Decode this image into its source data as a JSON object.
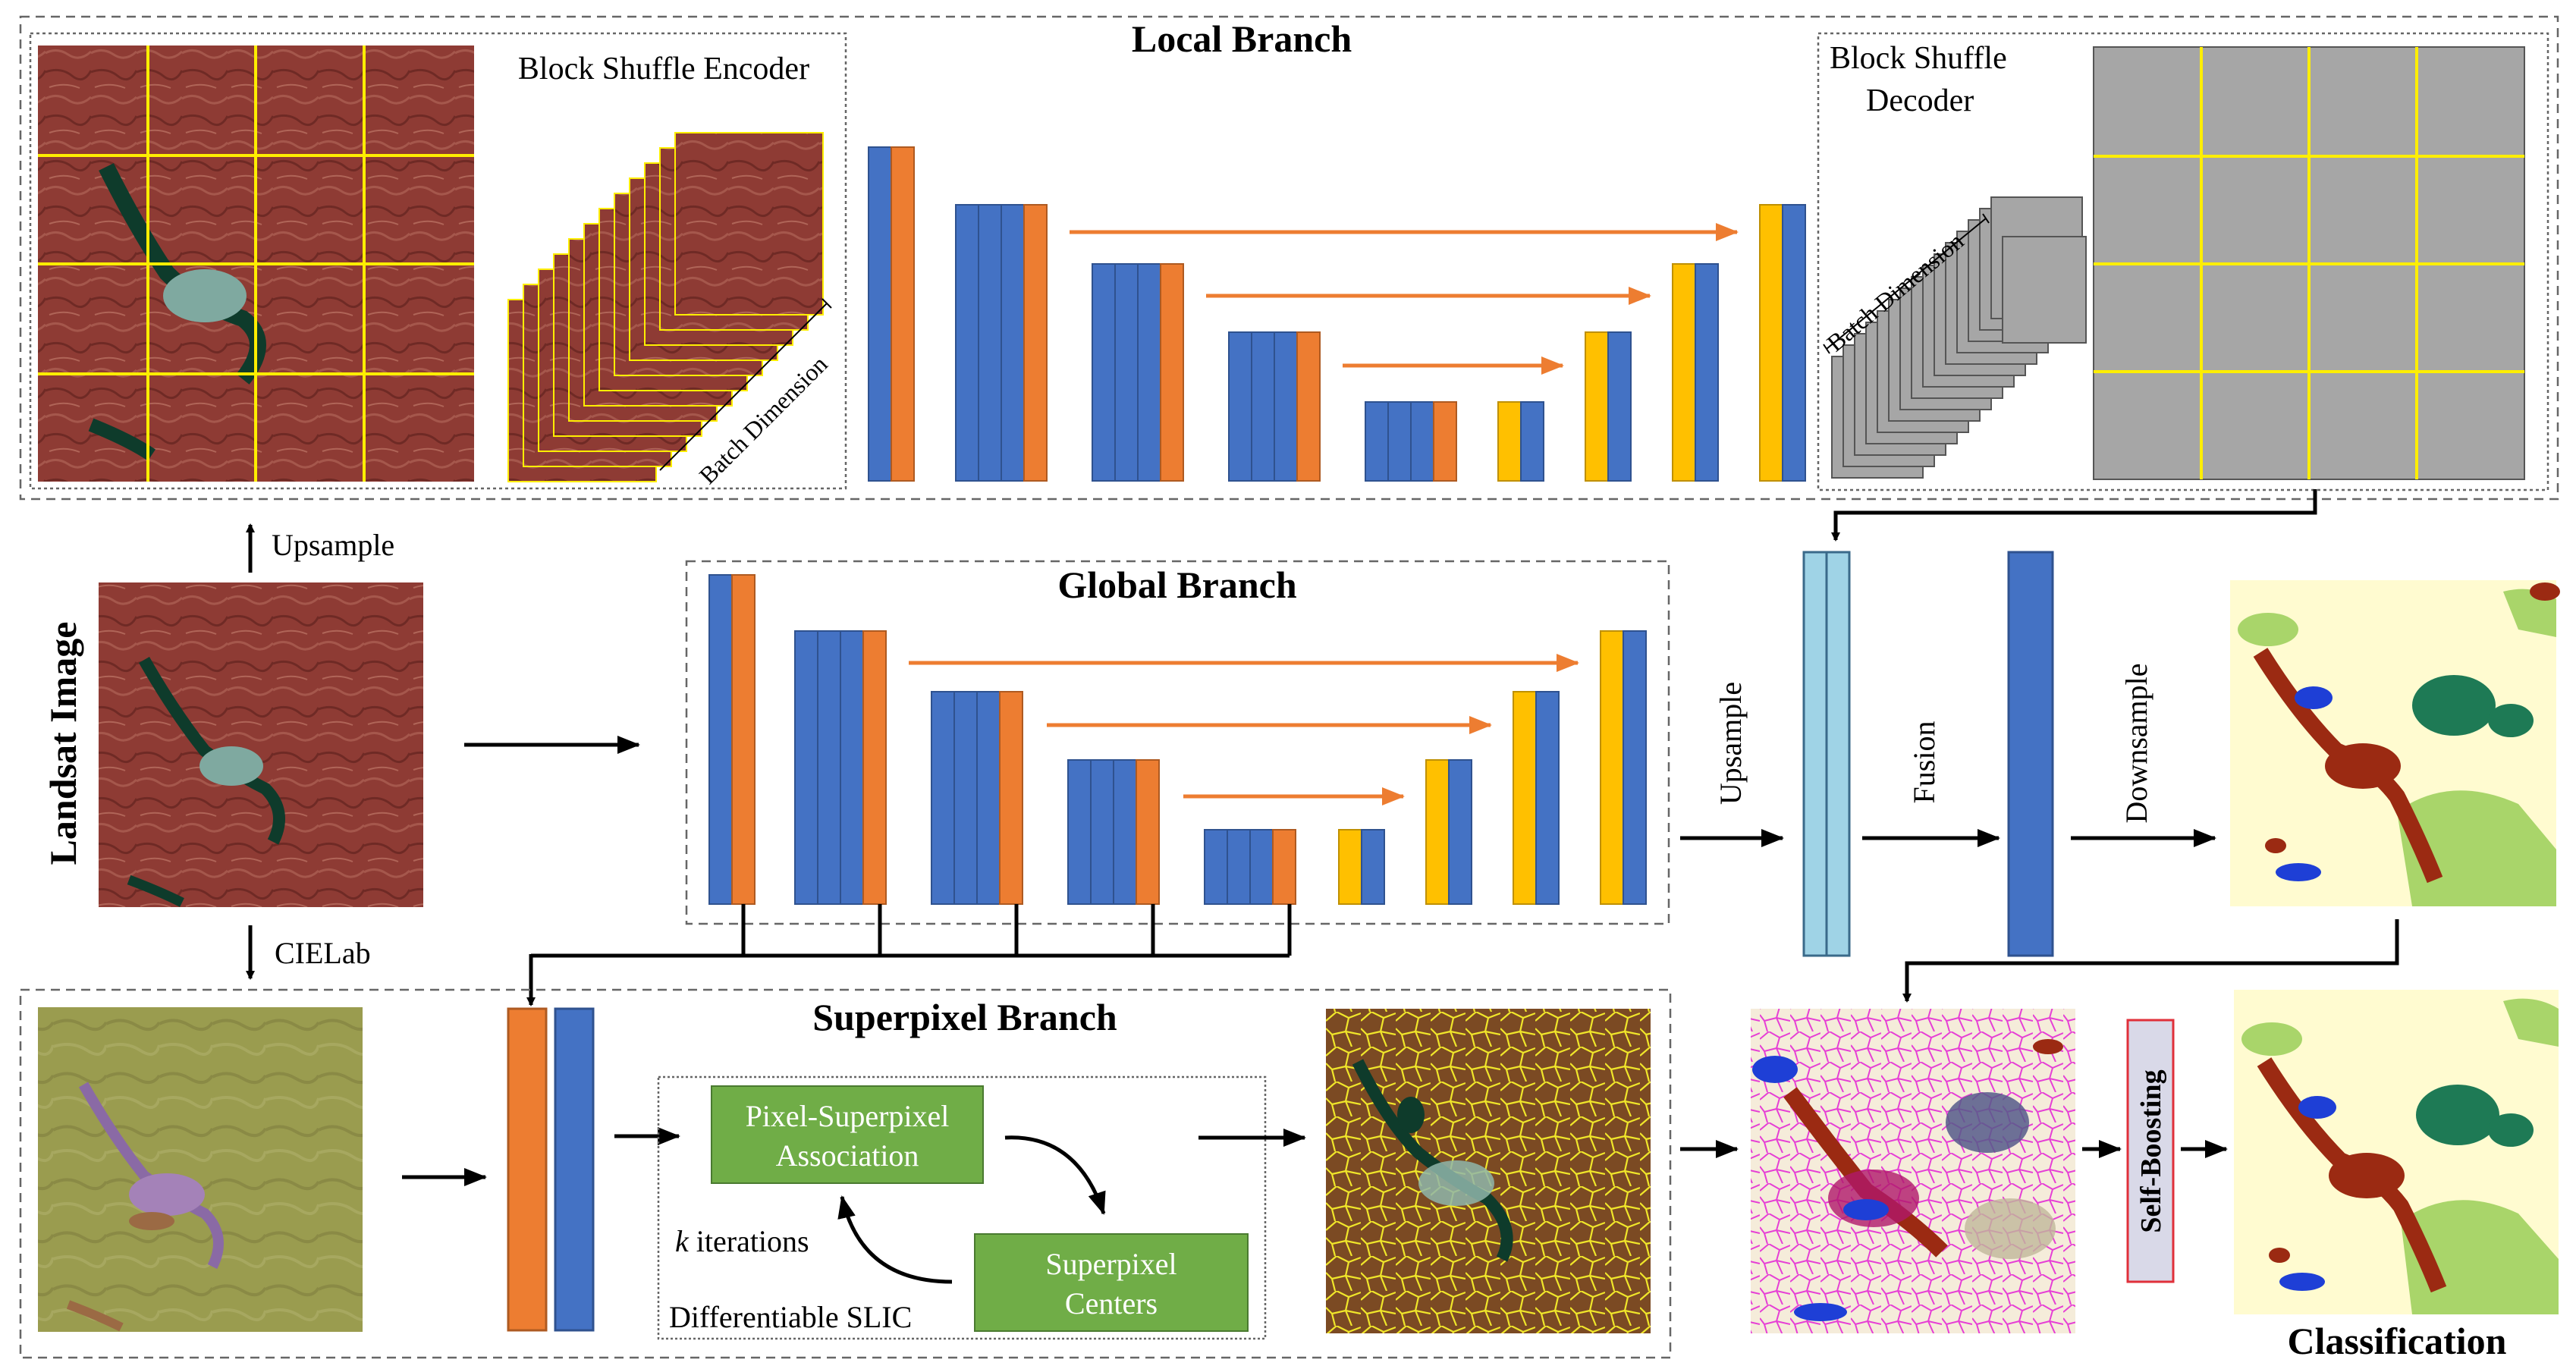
{
  "title_local": "Local Branch",
  "title_global": "Global Branch",
  "title_superpixel": "Superpixel Branch",
  "block_shuffle_encoder": "Block Shuffle Encoder",
  "block_shuffle_decoder_line1": "Block Shuffle",
  "block_shuffle_decoder_line2": "Decoder",
  "batch_dimension": "Batch Dimension",
  "landsat_image": "Landsat Image",
  "upsample": "Upsample",
  "cielab": "CIELab",
  "upsample_vertical": "Upsample",
  "fusion": "Fusion",
  "downsample": "Downsample",
  "pixel_superpixel_line1": "Pixel-Superpixel",
  "pixel_superpixel_line2": "Association",
  "superpixel_centers_line1": "Superpixel",
  "superpixel_centers_line2": "Centers",
  "k_iterations_k": "k",
  "k_iterations_rest": " iterations",
  "differentiable_slic": "Differentiable SLIC",
  "self_boosting": "Self-Boosting",
  "classification": "Classification",
  "colors": {
    "blue": "#4472c4",
    "orange": "#ed7d31",
    "yellow": "#ffc000",
    "light_blue": "#9fd3e6",
    "green_box": "#70ad47",
    "landsat_red": "#8e3b34",
    "map_bg": "#fffbd0",
    "map_brown": "#9b2a12",
    "map_darkgreen": "#1e7a55",
    "map_lightgreen": "#a9d56a",
    "map_blue": "#1e3fd6",
    "grid_yellow": "#ffee00",
    "gray": "#a6a6a6",
    "magenta": "#e645d7",
    "selfboost_fill": "#d9d9e8",
    "selfboost_border": "#e0303a"
  }
}
